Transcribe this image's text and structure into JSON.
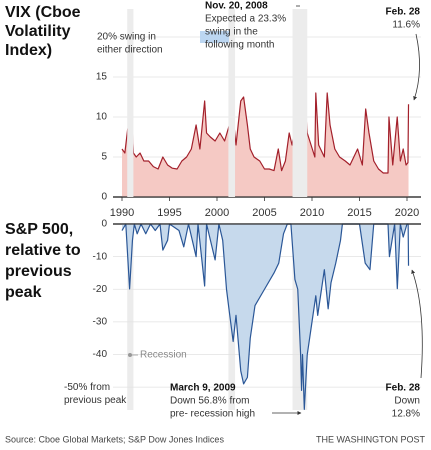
{
  "chart_data": [
    {
      "type": "area",
      "title_lines": [
        "VIX (Cboe",
        "Volatility",
        "Index)"
      ],
      "x": [
        1990.0,
        1990.3,
        1990.6,
        1990.8,
        1991.05,
        1991.2,
        1991.5,
        1991.9,
        1992.3,
        1992.8,
        1993.3,
        1993.8,
        1994.3,
        1994.8,
        1995.3,
        1995.8,
        1996.3,
        1996.8,
        1997.3,
        1997.8,
        1998.2,
        1998.7,
        1998.9,
        1999.3,
        1999.8,
        2000.3,
        2000.8,
        2001.3,
        2001.7,
        2002.0,
        2002.5,
        2002.8,
        2003.2,
        2003.5,
        2003.9,
        2004.5,
        2005.0,
        2005.5,
        2006.0,
        2006.45,
        2006.8,
        2007.2,
        2007.6,
        2007.9,
        2008.2,
        2008.5,
        2008.78,
        2008.89,
        2009.0,
        2009.2,
        2009.5,
        2009.9,
        2010.3,
        2010.4,
        2010.7,
        2011.3,
        2011.6,
        2011.9,
        2012.4,
        2012.9,
        2013.5,
        2014.0,
        2014.8,
        2015.3,
        2015.65,
        2016.0,
        2016.5,
        2017.0,
        2017.5,
        2018.0,
        2018.1,
        2018.5,
        2018.97,
        2019.3,
        2019.6,
        2019.9,
        2020.1,
        2020.16
      ],
      "values": [
        6,
        5.5,
        8.5,
        8,
        9,
        5.5,
        5,
        5.5,
        4.5,
        4.5,
        3.8,
        3.5,
        5,
        4,
        3.6,
        3.5,
        4.5,
        5,
        6,
        9,
        6,
        12,
        8,
        7.5,
        7,
        8,
        7,
        9,
        10,
        6.5,
        12,
        12.5,
        9,
        6,
        5,
        4.5,
        3.5,
        3.5,
        3.3,
        6,
        3.3,
        4.5,
        8,
        6.5,
        8.5,
        7,
        16,
        23.3,
        13,
        13,
        8,
        6.5,
        5,
        13,
        6.5,
        5,
        13,
        9,
        6,
        5,
        4.5,
        4,
        6,
        4,
        11,
        8,
        4.5,
        3.5,
        3,
        3,
        10,
        4,
        10,
        4.5,
        6,
        4,
        4.3,
        11.6
      ],
      "color": "#a3202b",
      "fill": "#f5c9c4",
      "xlim": [
        1990,
        2020.5
      ],
      "xticks": [
        1990,
        1995,
        2000,
        2005,
        2010,
        2015,
        2020
      ],
      "ylim": [
        0,
        23.5
      ],
      "yticks": [
        0,
        5,
        10,
        15,
        {
          "value": 20,
          "label": "20% swing in"
        }
      ],
      "ytick_note": "either direction",
      "grid": true,
      "annotations": [
        {
          "heading": "Nov. 20, 2008",
          "lines": [
            "Expected a 23.3%",
            "swing in the",
            "following month"
          ]
        },
        {
          "heading": "Feb. 28",
          "lines": [
            "11.6%"
          ]
        }
      ]
    },
    {
      "type": "area",
      "title_lines": [
        "S&P 500,",
        "relative to",
        "previous",
        "peak"
      ],
      "x": [
        1990.0,
        1990.4,
        1990.8,
        1991.1,
        1991.3,
        1991.6,
        1992.0,
        1992.5,
        1993.0,
        1993.5,
        1994.0,
        1994.3,
        1994.8,
        1995.0,
        1996.0,
        1996.5,
        1997.0,
        1997.8,
        1998.0,
        1998.7,
        1998.9,
        1999.8,
        2000.2,
        2000.6,
        2001.0,
        2001.3,
        2001.7,
        2002.0,
        2002.5,
        2002.8,
        2003.2,
        2003.5,
        2004.0,
        2005.0,
        2006.0,
        2006.5,
        2007.0,
        2007.4,
        2007.78,
        2008.2,
        2008.5,
        2008.8,
        2008.9,
        2009.0,
        2009.19,
        2009.5,
        2010.0,
        2010.4,
        2010.6,
        2011.3,
        2011.7,
        2012.0,
        2012.5,
        2013.0,
        2013.2,
        2014.0,
        2015.0,
        2015.6,
        2016.1,
        2016.5,
        2017.0,
        2018.0,
        2018.15,
        2018.7,
        2018.98,
        2019.3,
        2019.6,
        2020.0,
        2020.12,
        2020.16
      ],
      "values": [
        -2,
        0,
        -19.9,
        -5,
        0,
        -3,
        0,
        -3,
        0,
        -2,
        0,
        -8,
        -5,
        0,
        -2,
        -7,
        0,
        -10,
        0,
        -19,
        0,
        -11,
        0,
        -5,
        -20,
        -27,
        -36,
        -28,
        -45,
        -49,
        -47,
        -35,
        -25,
        -20,
        -15,
        -12,
        -3,
        0,
        0,
        -17,
        -20,
        -40,
        -51,
        -40,
        -56.8,
        -40,
        -30,
        -22,
        -28,
        -14,
        -26,
        -18,
        -12,
        -5,
        0,
        0,
        0,
        -12,
        -14,
        0,
        0,
        0,
        -10,
        0,
        -19.8,
        0,
        -4,
        0,
        0,
        -12.8
      ],
      "color": "#2b5797",
      "fill": "#c6d9ec",
      "xlim": [
        1990,
        2020.5
      ],
      "ylim": [
        -57,
        0
      ],
      "yticks": [
        0,
        -10,
        -20,
        -30,
        -40,
        {
          "value": -50,
          "label": "-50% from"
        }
      ],
      "ytick_note": "previous peak",
      "grid": true,
      "recessions": [
        [
          1990.55,
          1991.2
        ],
        [
          2001.2,
          2001.9
        ],
        [
          2007.95,
          2009.5
        ]
      ],
      "recession_label": "Recession",
      "annotations": [
        {
          "heading": "March 9, 2009",
          "lines": [
            "Down 56.8% from",
            "pre- recession high"
          ]
        },
        {
          "heading": "Feb. 28",
          "lines": [
            "Down",
            "12.8%"
          ]
        }
      ]
    }
  ],
  "source": "Source: Cboe Global Markets; S&P Dow Jones Indices",
  "credit": "THE WASHINGTON POST"
}
